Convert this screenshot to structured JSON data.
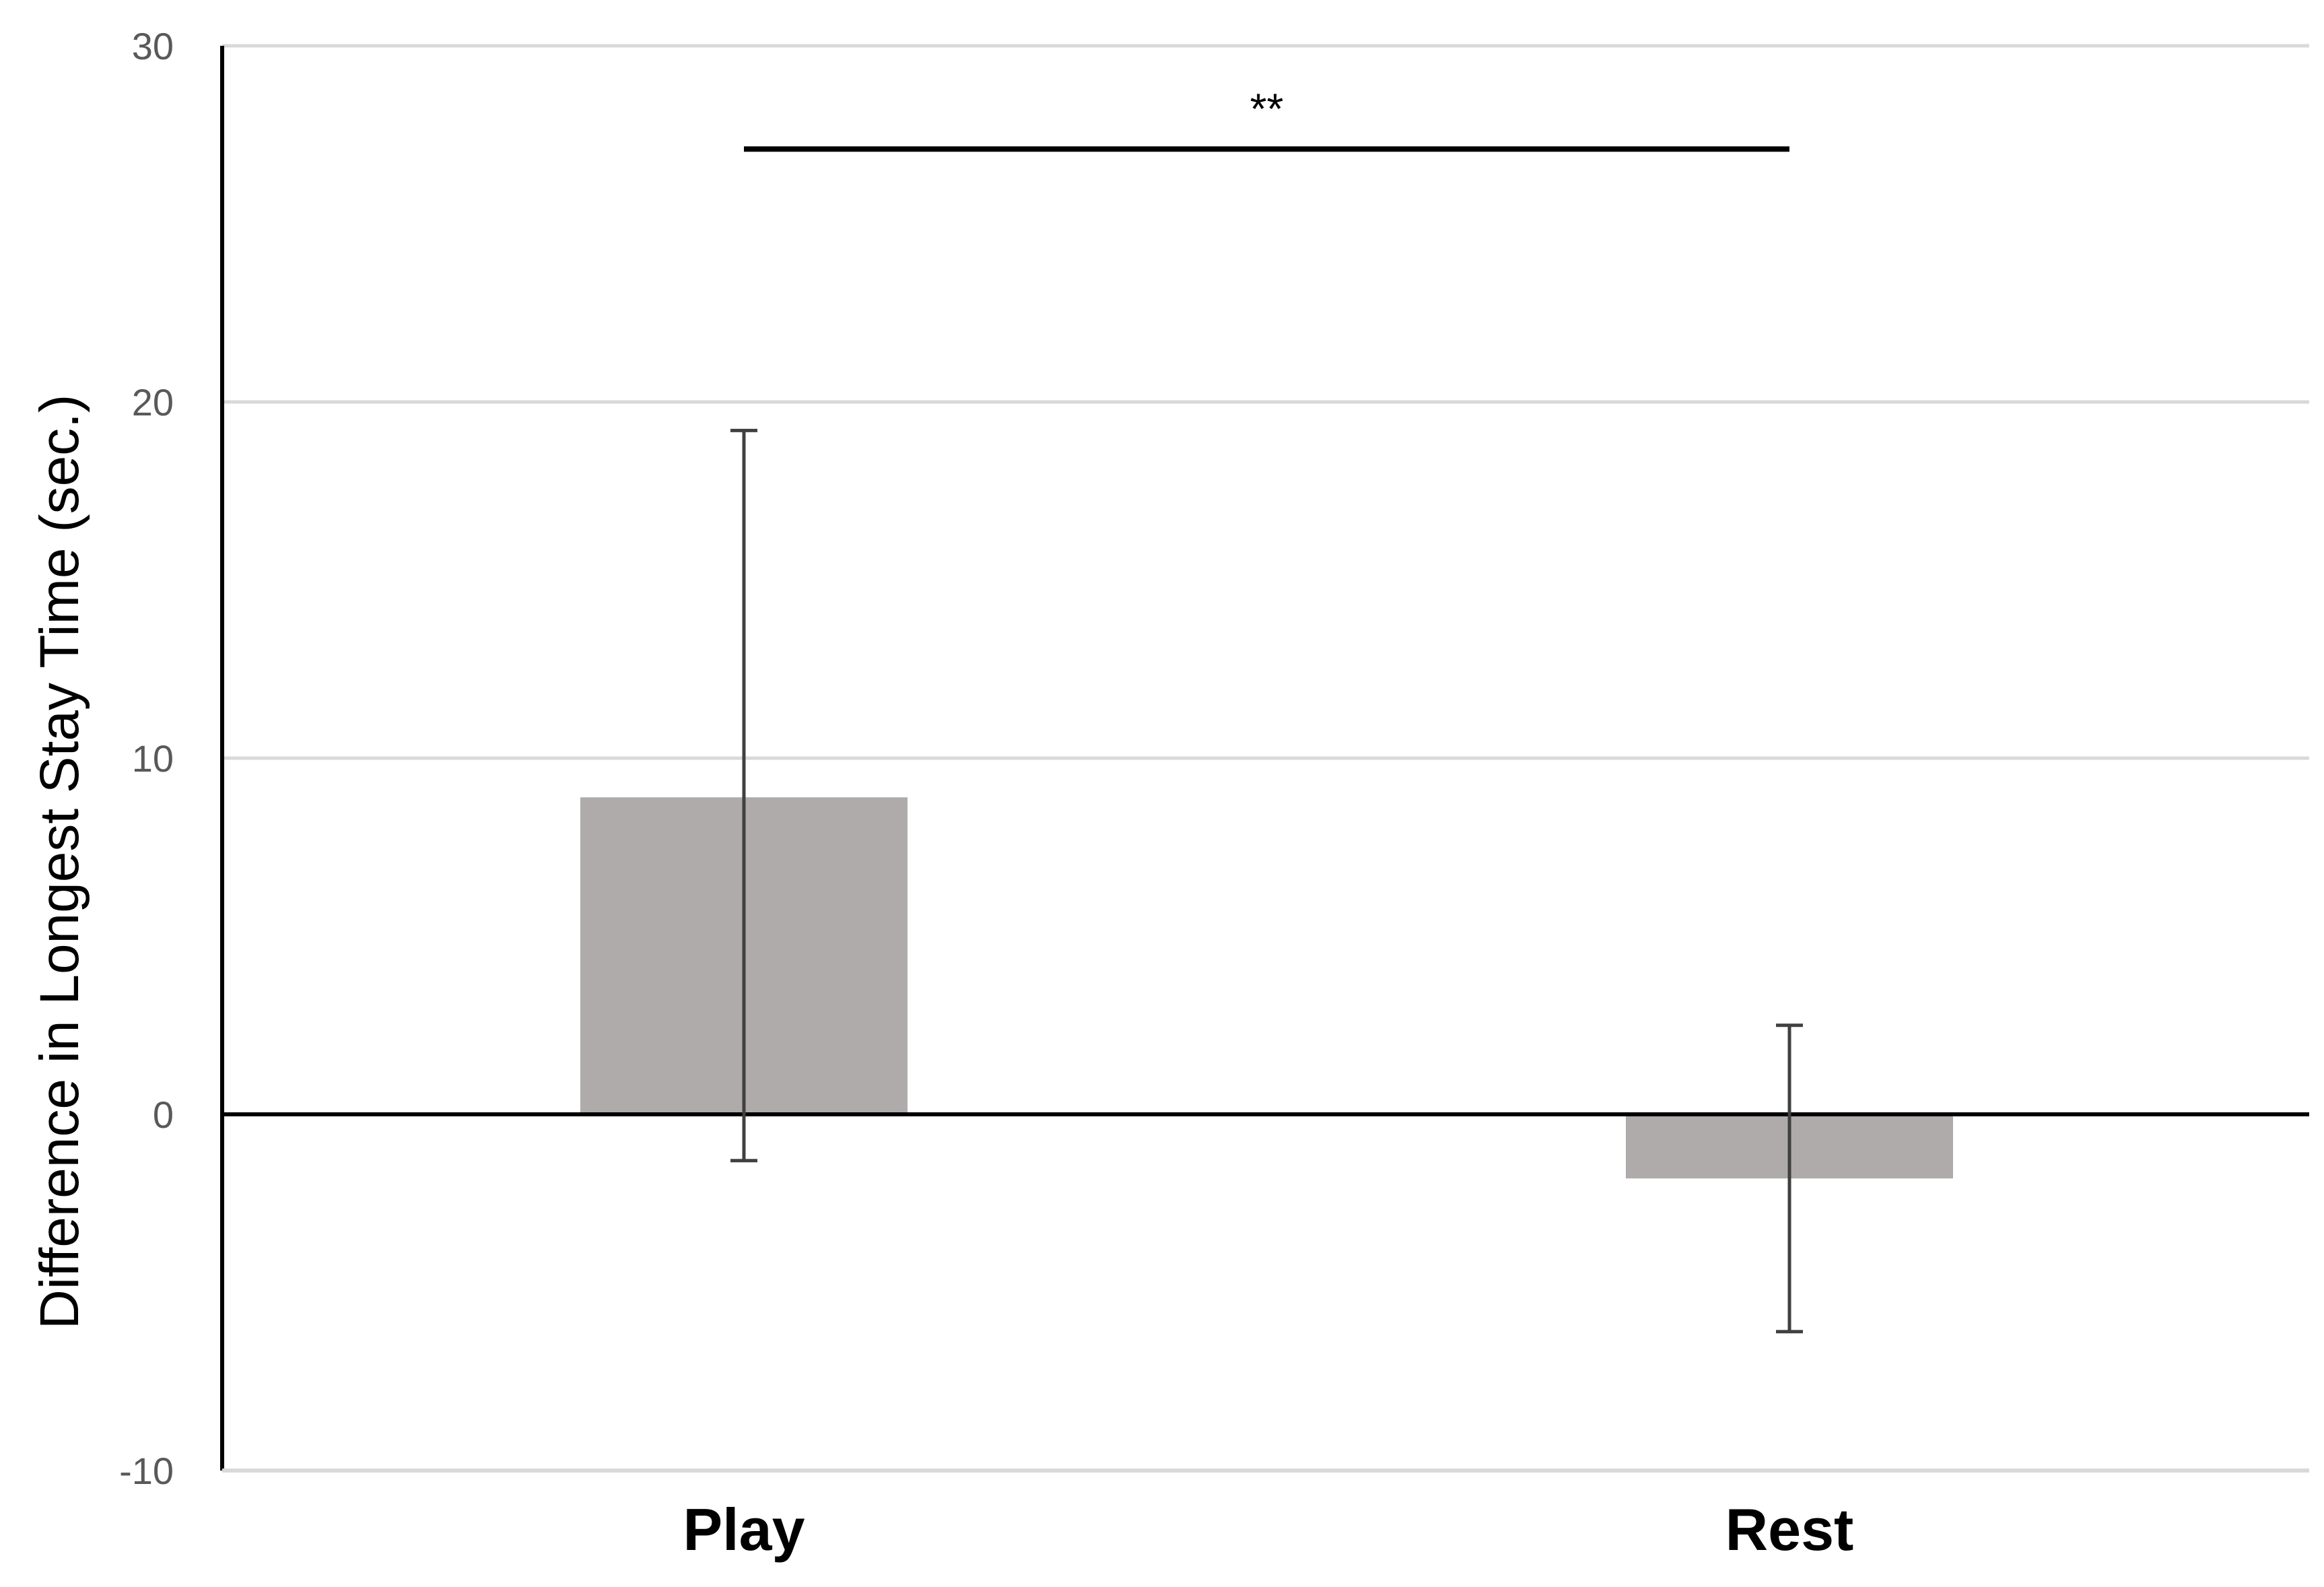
{
  "chart_data": {
    "type": "bar",
    "title": "",
    "xlabel": "",
    "ylabel": "Difference in Longest Stay  Time  (sec.)",
    "categories": [
      "Play",
      "Rest"
    ],
    "values": [
      8.9,
      -1.8
    ],
    "error_upper": [
      19.2,
      2.5
    ],
    "error_lower": [
      -1.3,
      -6.1
    ],
    "ylim": [
      -10,
      30
    ],
    "yticks": [
      -10,
      0,
      10,
      20,
      30
    ],
    "ytick_labels": [
      "-10",
      "0",
      "10",
      "20",
      "30"
    ],
    "grid": true,
    "legend": "none",
    "significance": {
      "label": "**",
      "between": [
        "Play",
        "Rest"
      ],
      "level": 27.1
    },
    "colors": {
      "bar": "#aeabaa",
      "error_bar": "#404040",
      "gridline": "#d9d9d9",
      "axis": "#000000",
      "tick_text": "#595959"
    }
  }
}
